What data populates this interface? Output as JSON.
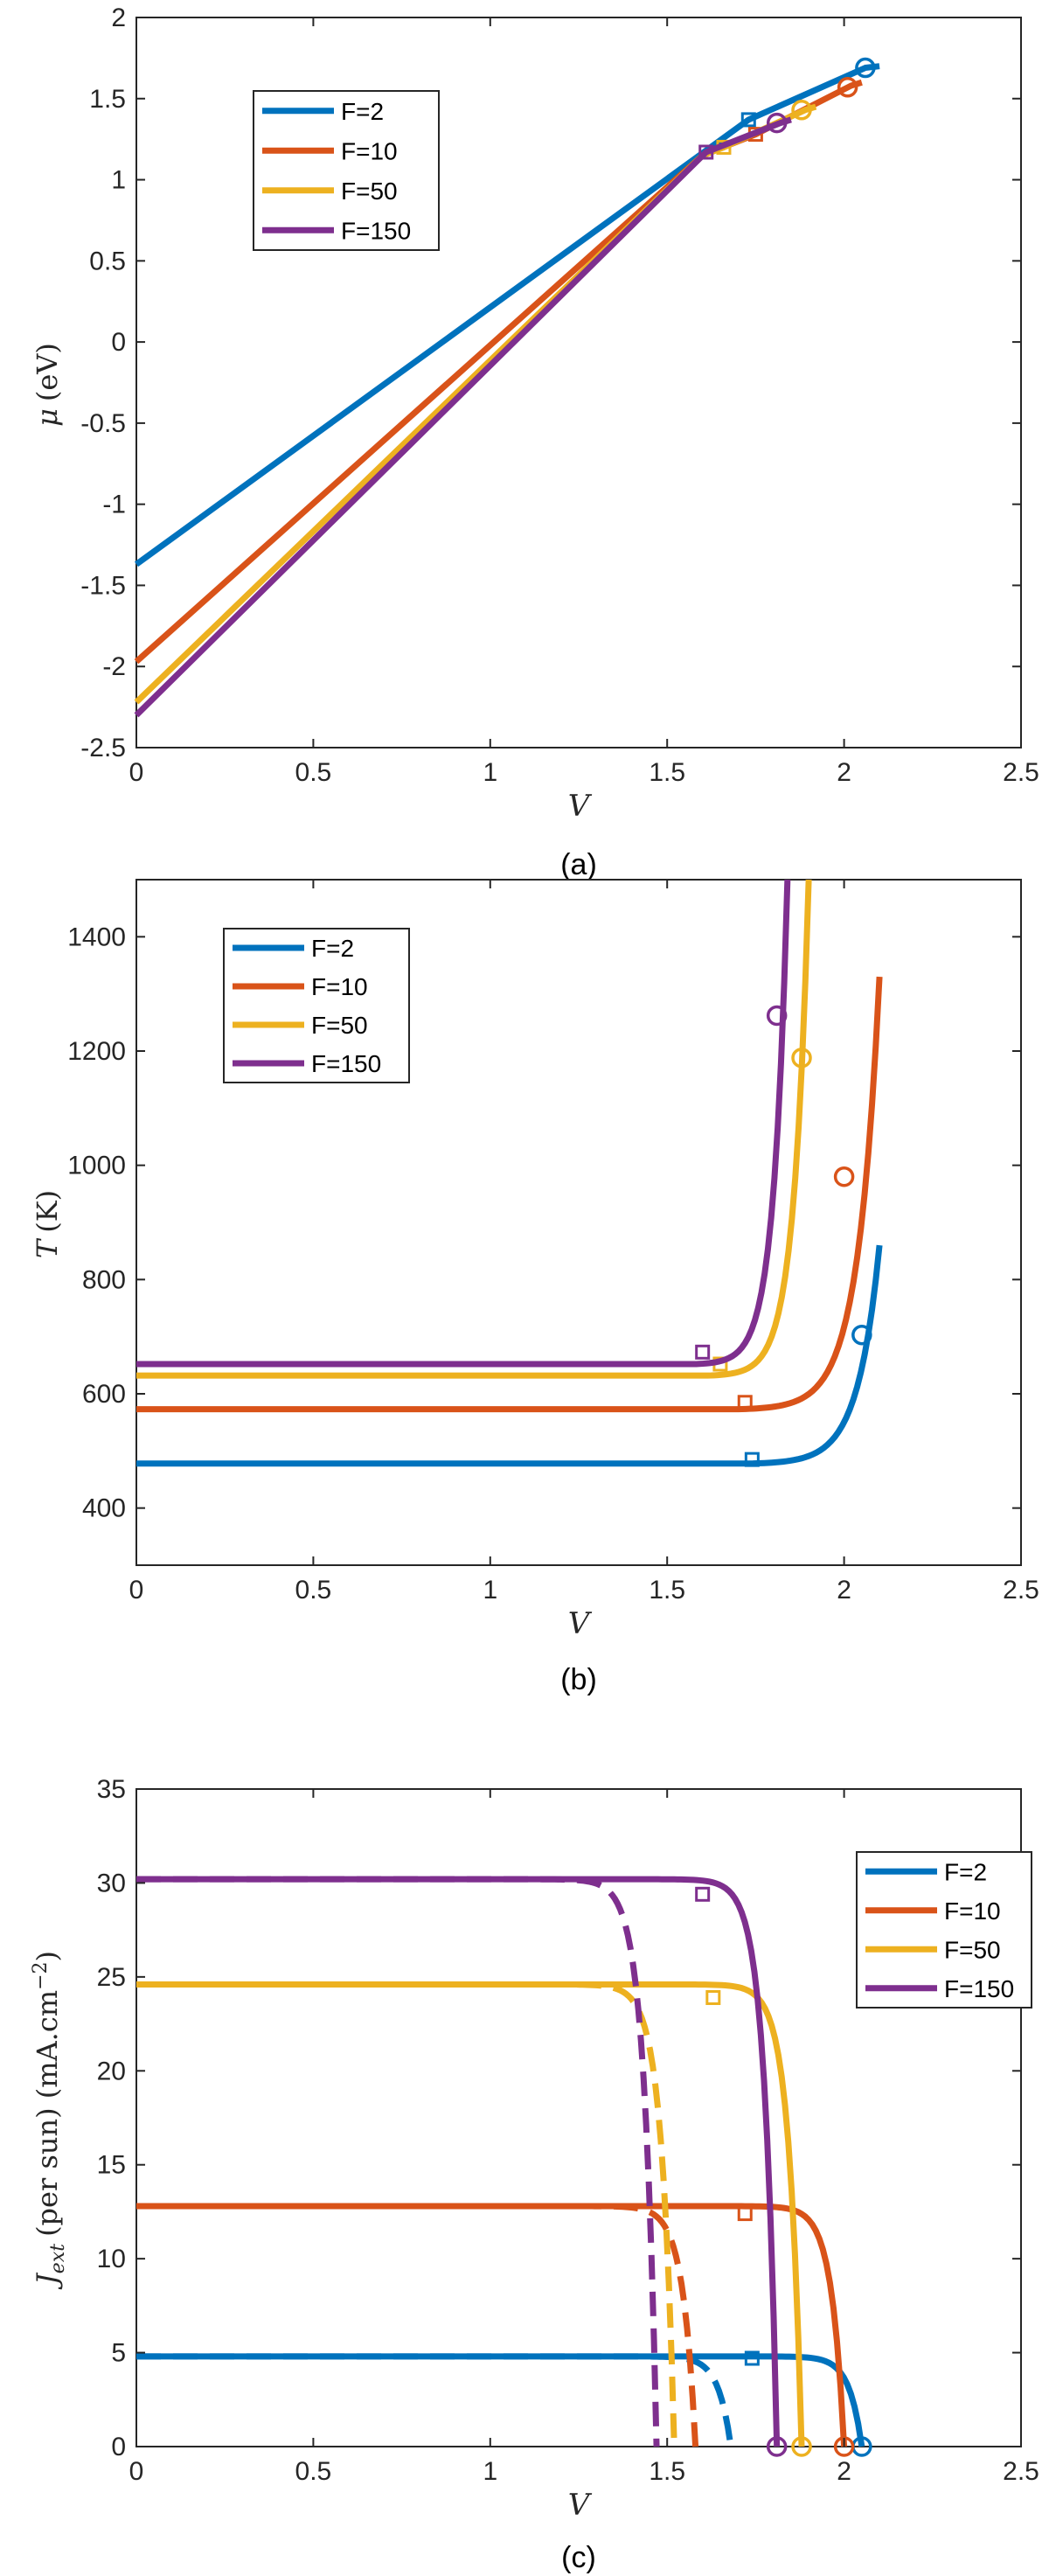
{
  "colors": {
    "F=2": "#0072bd",
    "F=10": "#d95319",
    "F=50": "#edb120",
    "F=150": "#7e2f8e"
  },
  "chart_data": [
    {
      "panel": "(a)",
      "type": "line",
      "xlabel": "V",
      "ylabel": "μ (eV)",
      "xlim": [
        0,
        2.5
      ],
      "ylim": [
        -2.5,
        2
      ],
      "xticks": [
        "0",
        "0.5",
        "1",
        "1.5",
        "2",
        "2.5"
      ],
      "yticks": [
        "-2.5",
        "-2",
        "-1.5",
        "-1",
        "-0.5",
        "0",
        "0.5",
        "1",
        "1.5",
        "2"
      ],
      "legend_position": "top-left",
      "series": [
        {
          "name": "F=2",
          "x": [
            0,
            1.73,
            2.06,
            2.1
          ],
          "y": [
            -1.37,
            1.37,
            1.69,
            1.7
          ],
          "marker_square": [
            1.73,
            1.37
          ],
          "marker_circle": [
            2.06,
            1.69
          ]
        },
        {
          "name": "F=10",
          "x": [
            0,
            1.6,
            1.75,
            2.02,
            2.05
          ],
          "y": [
            -1.97,
            1.15,
            1.28,
            1.58,
            1.6
          ],
          "marker_square": [
            1.75,
            1.28
          ],
          "marker_circle": [
            2.01,
            1.57
          ]
        },
        {
          "name": "F=50",
          "x": [
            0,
            1.6,
            1.66,
            1.89,
            1.92
          ],
          "y": [
            -2.22,
            1.15,
            1.2,
            1.43,
            1.45
          ],
          "marker_square": [
            1.66,
            1.2
          ],
          "marker_circle": [
            1.88,
            1.43
          ]
        },
        {
          "name": "F=150",
          "x": [
            0,
            1.61,
            1.82,
            1.85
          ],
          "y": [
            -2.3,
            1.17,
            1.35,
            1.37
          ],
          "marker_square": [
            1.61,
            1.17
          ],
          "marker_circle": [
            1.81,
            1.35
          ]
        }
      ]
    },
    {
      "panel": "(b)",
      "type": "line",
      "xlabel": "V",
      "ylabel": "T (K)",
      "xlim": [
        0,
        2.5
      ],
      "ylim": [
        300,
        1500
      ],
      "xticks": [
        "0",
        "0.5",
        "1",
        "1.5",
        "2",
        "2.5"
      ],
      "yticks": [
        "400",
        "600",
        "800",
        "1000",
        "1200",
        "1400"
      ],
      "legend_position": "top-left",
      "series": [
        {
          "name": "F=2",
          "T0": 478,
          "x_end": 2.1,
          "T_end": 860,
          "V_on": 1.74,
          "marker_square": [
            1.74,
            485
          ],
          "marker_circle": [
            2.05,
            703
          ]
        },
        {
          "name": "F=10",
          "T0": 573,
          "x_end": 2.1,
          "T_end": 1330,
          "V_on": 1.7,
          "marker_square": [
            1.72,
            585
          ],
          "marker_circle": [
            2.0,
            980
          ]
        },
        {
          "name": "F=50",
          "T0": 632,
          "x_end": 1.9,
          "T_end": 1500,
          "V_on": 1.62,
          "marker_square": [
            1.65,
            652
          ],
          "marker_circle": [
            1.88,
            1188
          ]
        },
        {
          "name": "F=150",
          "T0": 652,
          "x_end": 1.84,
          "T_end": 1500,
          "V_on": 1.58,
          "marker_square": [
            1.6,
            673
          ],
          "marker_circle": [
            1.81,
            1262
          ]
        }
      ]
    },
    {
      "panel": "(c)",
      "type": "line",
      "xlabel": "V",
      "ylabel": "J_ext (per sun) (mA.cm^-2)",
      "xlim": [
        0,
        2.5
      ],
      "ylim": [
        0,
        35
      ],
      "xticks": [
        "0",
        "0.5",
        "1",
        "1.5",
        "2",
        "2.5"
      ],
      "yticks": [
        "0",
        "5",
        "10",
        "15",
        "20",
        "25",
        "30",
        "35"
      ],
      "legend_position": "top-right",
      "series": [
        {
          "name": "F=2",
          "Jsc": 4.8,
          "Voc": 2.05,
          "Voc_dashed": 1.68,
          "marker_square": [
            1.74,
            4.7
          ],
          "marker_circle": [
            2.05,
            0
          ]
        },
        {
          "name": "F=10",
          "Jsc": 12.8,
          "Voc": 2.0,
          "Voc_dashed": 1.58,
          "marker_square": [
            1.72,
            12.4
          ],
          "marker_circle": [
            2.0,
            0
          ]
        },
        {
          "name": "F=50",
          "Jsc": 24.6,
          "Voc": 1.88,
          "Voc_dashed": 1.52,
          "marker_square": [
            1.63,
            23.9
          ],
          "marker_circle": [
            1.88,
            0
          ]
        },
        {
          "name": "F=150",
          "Jsc": 30.2,
          "Voc": 1.81,
          "Voc_dashed": 1.47,
          "marker_square": [
            1.6,
            29.4
          ],
          "marker_circle": [
            1.81,
            0
          ]
        }
      ]
    }
  ],
  "labels": {
    "a": {
      "caption": "(a)",
      "xlabel": "V",
      "ylabel_sym": "μ",
      "ylabel_unit": "(eV)"
    },
    "b": {
      "caption": "(b)",
      "xlabel": "V",
      "ylabel_sym": "T",
      "ylabel_unit": "(K)"
    },
    "c": {
      "caption": "(c)",
      "xlabel": "V",
      "ylabel_sym": "J",
      "ylabel_sub": "ext",
      "ylabel_unit": "(per sun) (mA.cm",
      "ylabel_sup": "−2",
      "ylabel_close": ")"
    }
  }
}
